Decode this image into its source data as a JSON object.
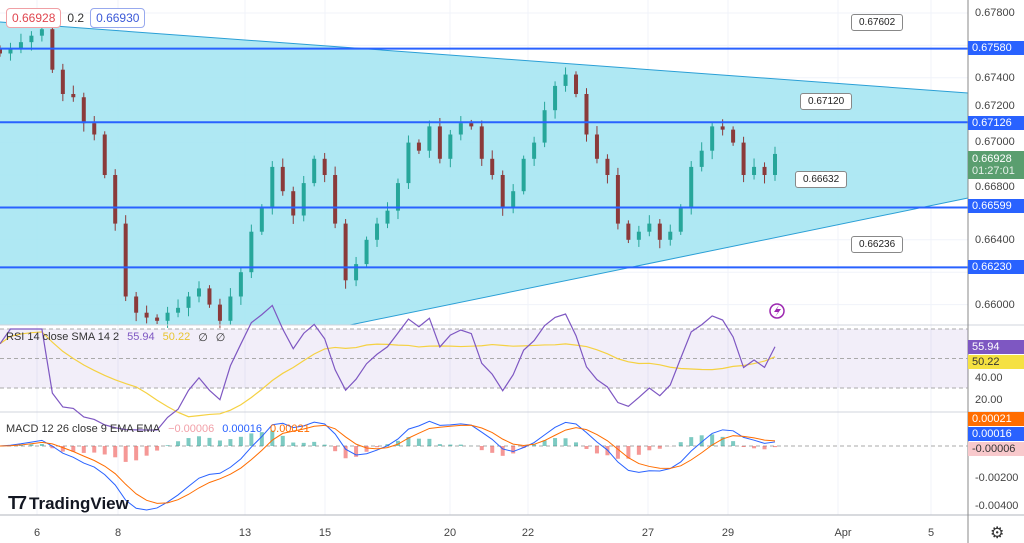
{
  "header": {
    "bid": "0.66928",
    "spread": "0.2",
    "ask": "0.66930"
  },
  "price_axis": {
    "ticks": [
      "0.67800",
      "0.67400",
      "0.67200",
      "0.67000",
      "0.66800",
      "0.66400",
      "0.66000"
    ],
    "current_price": "0.66928",
    "countdown": "01:27:01",
    "current_color": "#4caf50"
  },
  "levels": [
    {
      "value": 0.6758,
      "label": "0.67580"
    },
    {
      "value": 0.67126,
      "label": "0.67126"
    },
    {
      "value": 0.66599,
      "label": "0.66599"
    },
    {
      "value": 0.6623,
      "label": "0.66230"
    }
  ],
  "callouts": [
    "0.67602",
    "0.67120",
    "0.66632",
    "0.66236"
  ],
  "level_color": "#2962ff",
  "triangle_color": "#a6e6f2",
  "candles": {
    "closes": [
      0.6755,
      0.6758,
      0.6762,
      0.6766,
      0.677,
      0.6745,
      0.673,
      0.6728,
      0.6712,
      0.6705,
      0.668,
      0.665,
      0.6605,
      0.6595,
      0.6592,
      0.659,
      0.6595,
      0.6598,
      0.6605,
      0.661,
      0.66,
      0.659,
      0.6605,
      0.662,
      0.6645,
      0.666,
      0.6685,
      0.667,
      0.6655,
      0.6675,
      0.669,
      0.668,
      0.665,
      0.6615,
      0.6625,
      0.664,
      0.665,
      0.6658,
      0.6675,
      0.67,
      0.6695,
      0.671,
      0.669,
      0.6705,
      0.6712,
      0.671,
      0.669,
      0.668,
      0.666,
      0.667,
      0.669,
      0.67,
      0.672,
      0.6735,
      0.6742,
      0.673,
      0.6705,
      0.669,
      0.668,
      0.665,
      0.664,
      0.6645,
      0.665,
      0.664,
      0.6645,
      0.666,
      0.6685,
      0.6695,
      0.671,
      0.6708,
      0.67,
      0.668,
      0.6685,
      0.668,
      0.6693
    ],
    "up_color": "#26a69a",
    "down_color": "#8b3a3a"
  },
  "rsi": {
    "label": "RSI 14 close SMA 14 2",
    "value": "55.94",
    "sma": "50.22",
    "extra1": "∅",
    "extra2": "∅",
    "axis": [
      "20.00",
      "40.00"
    ],
    "line_color": "#7e57c2",
    "sma_color": "#f5d142"
  },
  "macd": {
    "label": "MACD 12 26 close 9 EMA EMA",
    "hist": "−0.00006",
    "macd": "0.00016",
    "signal": "0.00021",
    "axis": [
      "-0.00200",
      "-0.00400"
    ],
    "tag_signal": "0.00021",
    "tag_macd": "0.00016",
    "tag_hist": "-0.00006"
  },
  "time_axis": [
    "6",
    "8",
    "13",
    "15",
    "20",
    "22",
    "27",
    "29",
    "Apr",
    "5"
  ],
  "logo": "TradingView",
  "settings_icon": "gear-icon"
}
